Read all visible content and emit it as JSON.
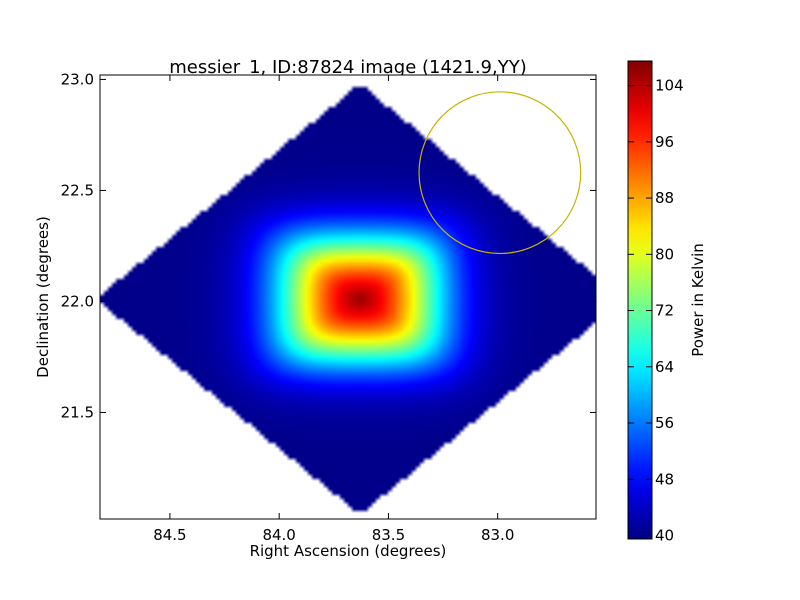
{
  "chart_data": {
    "type": "heatmap",
    "title": "messier_1, ID:87824 image (1421.9,YY)",
    "xlabel": "Right Ascension (degrees)",
    "ylabel": "Declination (degrees)",
    "xlim": [
      84.82,
      82.55
    ],
    "ylim": [
      21.02,
      23.02
    ],
    "x_ticks": [
      84.5,
      84.0,
      83.5,
      83.0
    ],
    "x_tick_labels": [
      "84.5",
      "84.0",
      "83.5",
      "83.0"
    ],
    "y_ticks": [
      21.5,
      22.0,
      22.5,
      23.0
    ],
    "y_tick_labels": [
      "21.5",
      "22.0",
      "22.5",
      "23.0"
    ],
    "grid": false,
    "colormap": "jet",
    "colorbar": {
      "label": "Power in Kelvin",
      "min": 39.5,
      "max": 107.5,
      "ticks": [
        40,
        48,
        56,
        64,
        72,
        80,
        88,
        96,
        104
      ],
      "tick_labels": [
        "40",
        "48",
        "56",
        "64",
        "72",
        "80",
        "88",
        "96",
        "104"
      ]
    },
    "map": {
      "center_ra": 83.63,
      "center_dec": 22.01,
      "outer_ra_radius": 1.21,
      "outer_dec_radius": 0.97,
      "peak_value": 106,
      "background_value": 40,
      "plateau_ra_radius": 0.38,
      "plateau_dec_radius": 0.29
    },
    "annotations": [
      {
        "type": "circle",
        "ra": 82.99,
        "dec": 22.58,
        "radius_ra": 0.37,
        "color": "#c8b400"
      }
    ]
  }
}
